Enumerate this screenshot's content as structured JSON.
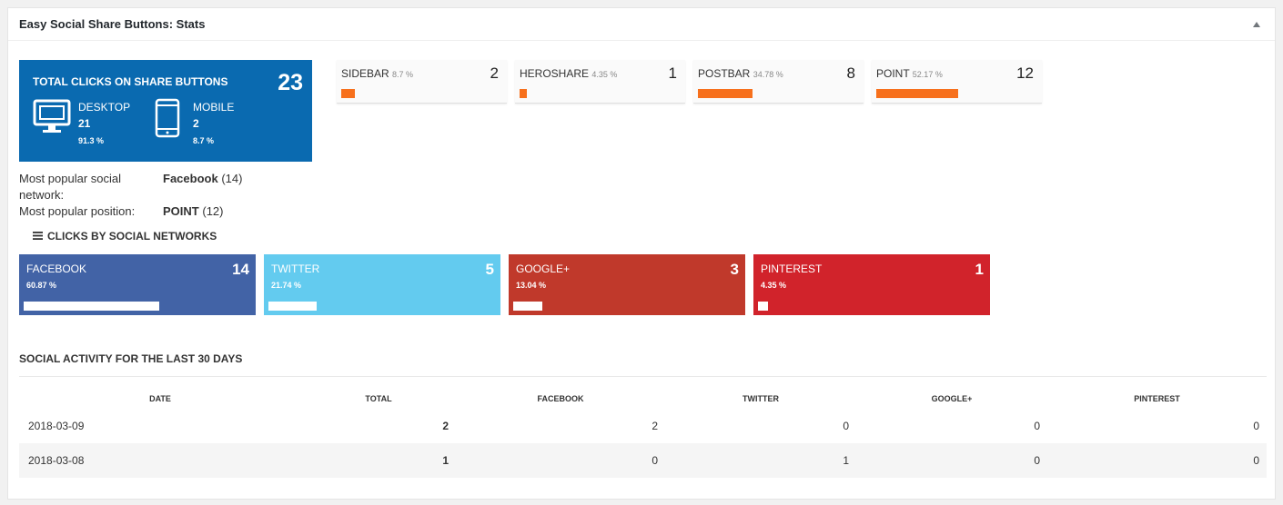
{
  "widget": {
    "title": "Easy Social Share Buttons: Stats"
  },
  "total": {
    "title": "TOTAL CLICKS ON SHARE BUTTONS",
    "count": "23",
    "desktop": {
      "label": "DESKTOP",
      "value": "21",
      "pct": "91.3 %"
    },
    "mobile": {
      "label": "MOBILE",
      "value": "2",
      "pct": "8.7 %"
    }
  },
  "positions": [
    {
      "label": "SIDEBAR",
      "pct": "8.7 %",
      "count": "2",
      "share": 0.087
    },
    {
      "label": "HEROSHARE",
      "pct": "4.35 %",
      "count": "1",
      "share": 0.0435
    },
    {
      "label": "POSTBAR",
      "pct": "34.78 %",
      "count": "8",
      "share": 0.3478
    },
    {
      "label": "POINT",
      "pct": "52.17 %",
      "count": "12",
      "share": 0.5217
    }
  ],
  "popular": {
    "network_label": "Most popular social network:",
    "network_value": "Facebook",
    "network_count": "(14)",
    "position_label": "Most popular position:",
    "position_value": "POINT",
    "position_count": "(12)"
  },
  "networks_heading": "CLICKS BY SOCIAL NETWORKS",
  "networks": [
    {
      "label": "FACEBOOK",
      "pct": "60.87 %",
      "count": "14",
      "share": 0.6087,
      "color": "#4263a6"
    },
    {
      "label": "TWITTER",
      "pct": "21.74 %",
      "count": "5",
      "share": 0.2174,
      "color": "#63cbef"
    },
    {
      "label": "GOOGLE+",
      "pct": "13.04 %",
      "count": "3",
      "share": 0.1304,
      "color": "#c0392b"
    },
    {
      "label": "PINTEREST",
      "pct": "4.35 %",
      "count": "1",
      "share": 0.0435,
      "color": "#d1232b"
    }
  ],
  "activity": {
    "title": "SOCIAL ACTIVITY FOR THE LAST 30 DAYS",
    "columns": [
      "DATE",
      "TOTAL",
      "FACEBOOK",
      "TWITTER",
      "GOOGLE+",
      "PINTEREST"
    ],
    "rows": [
      [
        "2018-03-09",
        "2",
        "2",
        "0",
        "0",
        "0"
      ],
      [
        "2018-03-08",
        "1",
        "0",
        "1",
        "0",
        "0"
      ]
    ]
  }
}
